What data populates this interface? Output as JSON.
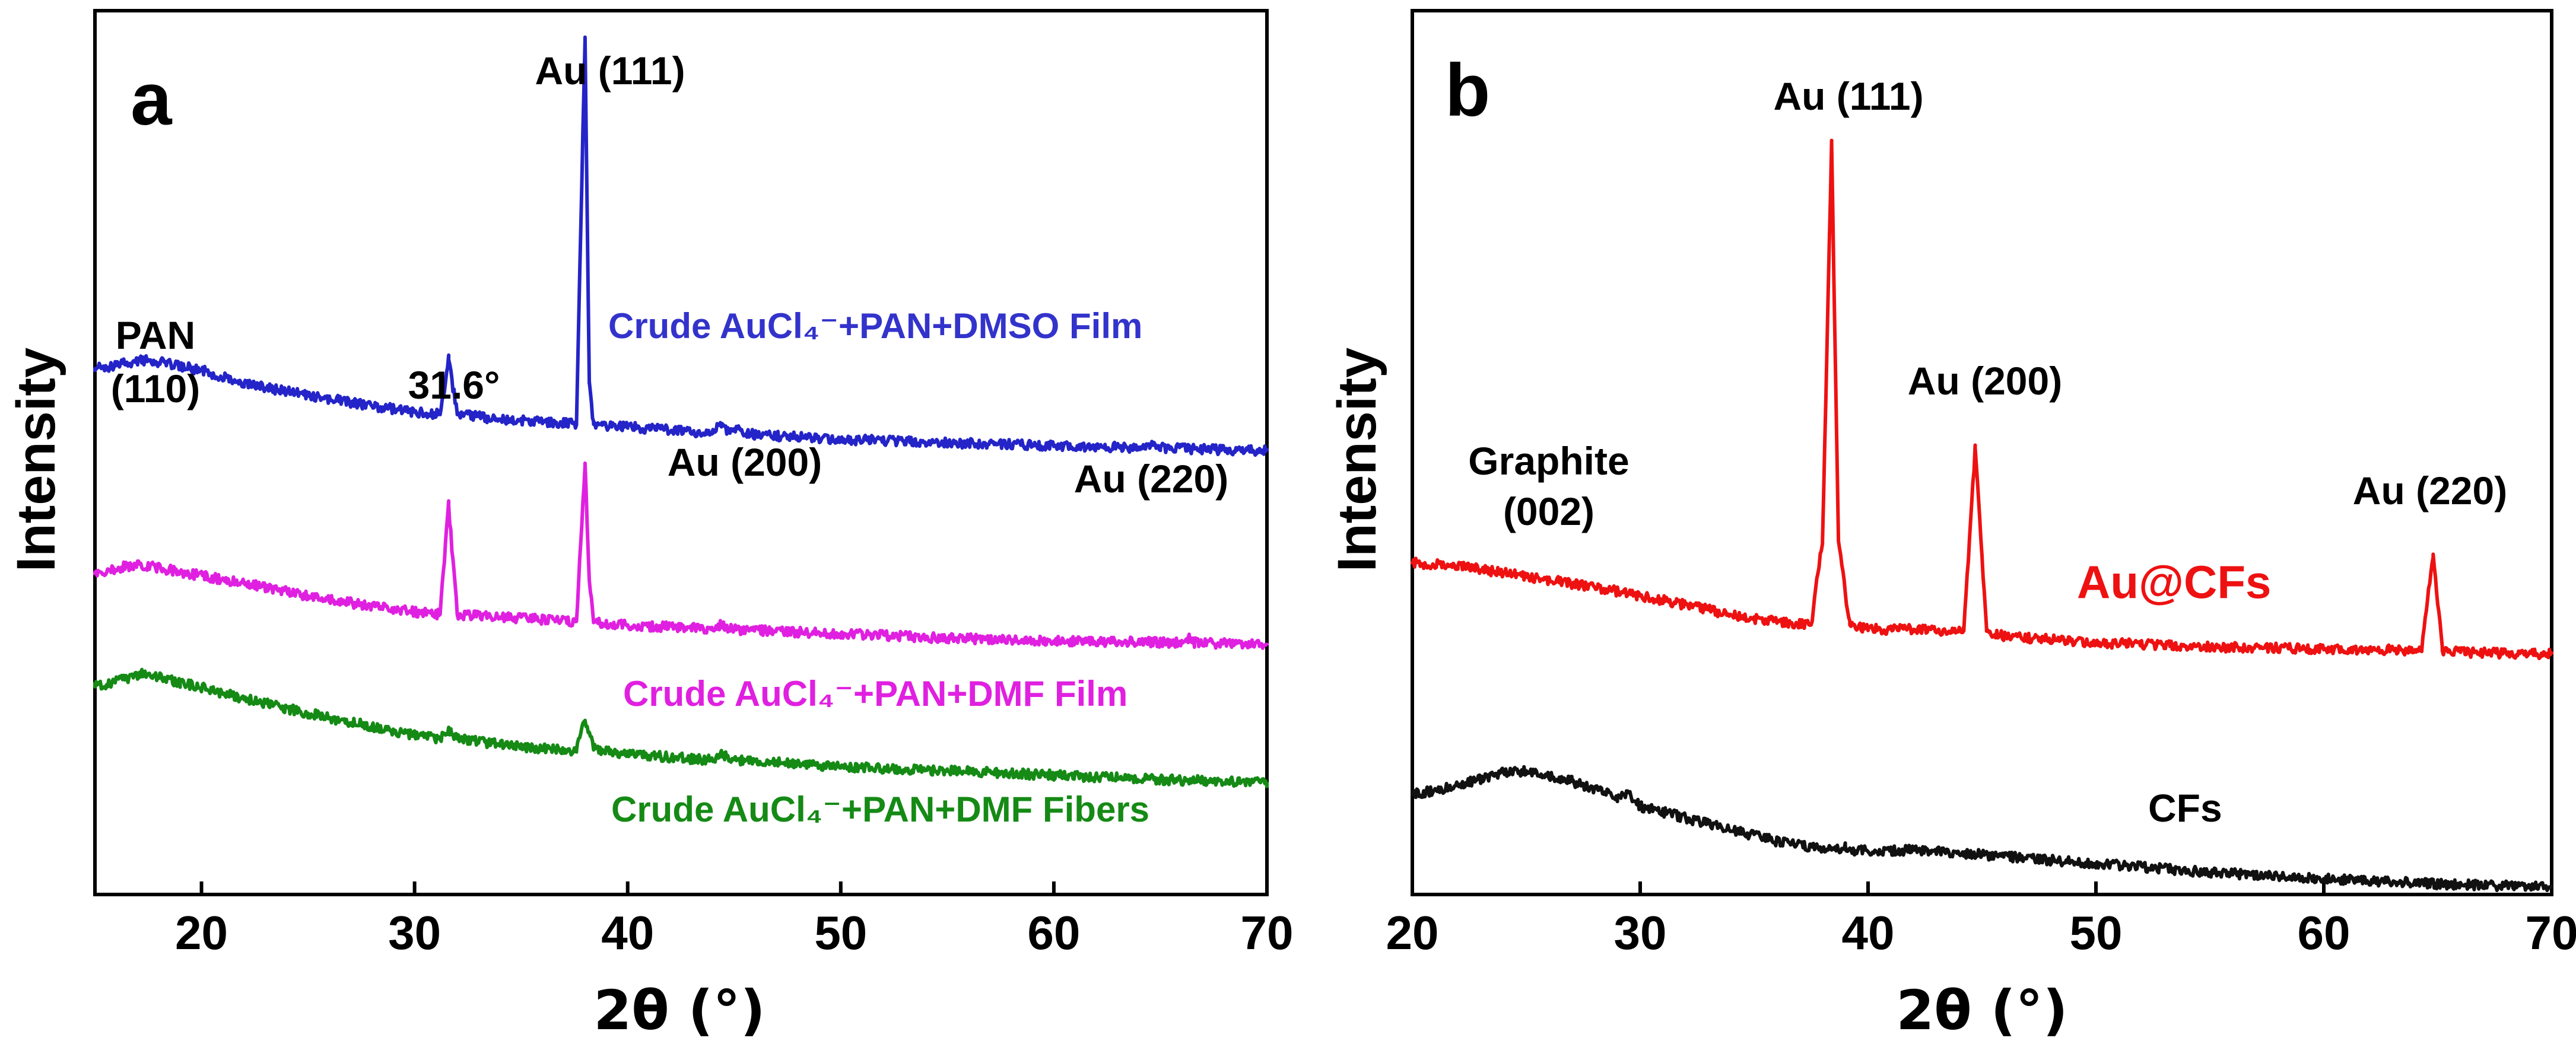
{
  "chart_data": [
    {
      "type": "line",
      "panel_label": "a",
      "xlabel": "2θ (°)",
      "ylabel": "Intensity",
      "xlim": [
        15,
        70
      ],
      "ylim": [
        0,
        1
      ],
      "xticks": [
        20,
        30,
        40,
        50,
        60,
        70
      ],
      "grid": false,
      "series": [
        {
          "name": "Crude AuCl₄⁻+PAN+DMSO Film",
          "color": "#2424c8",
          "x": [
            15,
            17.5,
            20,
            22,
            25,
            28,
            30,
            31.2,
            31.6,
            32.0,
            34,
            36,
            37.6,
            38.0,
            38.2,
            38.4,
            38.8,
            40,
            44,
            44.4,
            44.8,
            45.2,
            45.6,
            46,
            50,
            55,
            60,
            64.5,
            64.7,
            65,
            70
          ],
          "y": [
            0.595,
            0.605,
            0.593,
            0.578,
            0.565,
            0.553,
            0.546,
            0.543,
            0.605,
            0.543,
            0.538,
            0.535,
            0.533,
            0.97,
            0.58,
            0.532,
            0.531,
            0.529,
            0.522,
            0.533,
            0.522,
            0.527,
            0.522,
            0.52,
            0.515,
            0.511,
            0.508,
            0.505,
            0.51,
            0.505,
            0.502
          ]
        },
        {
          "name": "Crude AuCl₄⁻+PAN+DMF Film",
          "color": "#e020e0",
          "x": [
            15,
            17,
            19,
            22,
            25,
            28,
            30,
            31.2,
            31.6,
            32.0,
            34,
            36,
            37.6,
            38.0,
            38.2,
            38.4,
            38.8,
            40,
            44,
            44.4,
            44.8,
            50,
            55,
            60,
            66,
            66.3,
            66.6,
            70
          ],
          "y": [
            0.364,
            0.374,
            0.365,
            0.352,
            0.338,
            0.326,
            0.32,
            0.317,
            0.44,
            0.317,
            0.314,
            0.311,
            0.309,
            0.488,
            0.355,
            0.308,
            0.307,
            0.305,
            0.3,
            0.306,
            0.3,
            0.295,
            0.29,
            0.287,
            0.285,
            0.29,
            0.285,
            0.282
          ]
        },
        {
          "name": "Crude AuCl₄⁻+PAN+DMF Fibers",
          "color": "#158a15",
          "x": [
            15,
            17.3,
            19,
            22,
            25,
            28,
            30,
            31.2,
            31.6,
            32.0,
            34,
            36,
            37.6,
            38.0,
            38.4,
            38.8,
            40,
            44,
            44.4,
            44.8,
            50,
            55,
            60,
            65,
            70
          ],
          "y": [
            0.235,
            0.25,
            0.24,
            0.222,
            0.205,
            0.19,
            0.18,
            0.176,
            0.185,
            0.176,
            0.17,
            0.165,
            0.163,
            0.197,
            0.165,
            0.162,
            0.159,
            0.152,
            0.16,
            0.152,
            0.145,
            0.14,
            0.135,
            0.13,
            0.127
          ]
        }
      ],
      "annotations": [
        "PAN",
        "(110)",
        "31.6°",
        "Au (111)",
        "Au (200)",
        "Au (220)"
      ]
    },
    {
      "type": "line",
      "panel_label": "b",
      "xlabel": "2θ (°)",
      "ylabel": "Intensity",
      "xlim": [
        20,
        70
      ],
      "ylim": [
        0,
        1
      ],
      "xticks": [
        20,
        30,
        40,
        50,
        60,
        70
      ],
      "grid": false,
      "series": [
        {
          "name": "Au@CFs",
          "color": "#ee1111",
          "x": [
            20,
            22,
            25,
            28,
            30,
            33,
            35,
            37.5,
            38.0,
            38.4,
            38.7,
            39.2,
            40,
            42,
            44.2,
            44.7,
            45.2,
            46,
            50,
            55,
            60,
            64.3,
            64.8,
            65.2,
            66,
            70
          ],
          "y": [
            0.375,
            0.372,
            0.36,
            0.348,
            0.338,
            0.322,
            0.312,
            0.305,
            0.4,
            0.85,
            0.4,
            0.305,
            0.3,
            0.3,
            0.298,
            0.505,
            0.298,
            0.292,
            0.285,
            0.28,
            0.278,
            0.276,
            0.385,
            0.276,
            0.274,
            0.272
          ]
        },
        {
          "name": "CFs",
          "color": "#111111",
          "x": [
            20,
            22,
            24,
            25,
            27,
            29,
            29.4,
            30,
            33,
            36,
            38.6,
            39,
            39.4,
            42,
            45,
            50,
            55,
            60,
            65,
            70
          ],
          "y": [
            0.113,
            0.123,
            0.138,
            0.14,
            0.128,
            0.11,
            0.115,
            0.1,
            0.08,
            0.06,
            0.05,
            0.055,
            0.05,
            0.05,
            0.045,
            0.035,
            0.025,
            0.018,
            0.012,
            0.008
          ]
        }
      ],
      "annotations": [
        "Graphite",
        "(002)",
        "Au (111)",
        "Au (200)",
        "Au (220)",
        "Au@CFs",
        "CFs"
      ]
    }
  ]
}
